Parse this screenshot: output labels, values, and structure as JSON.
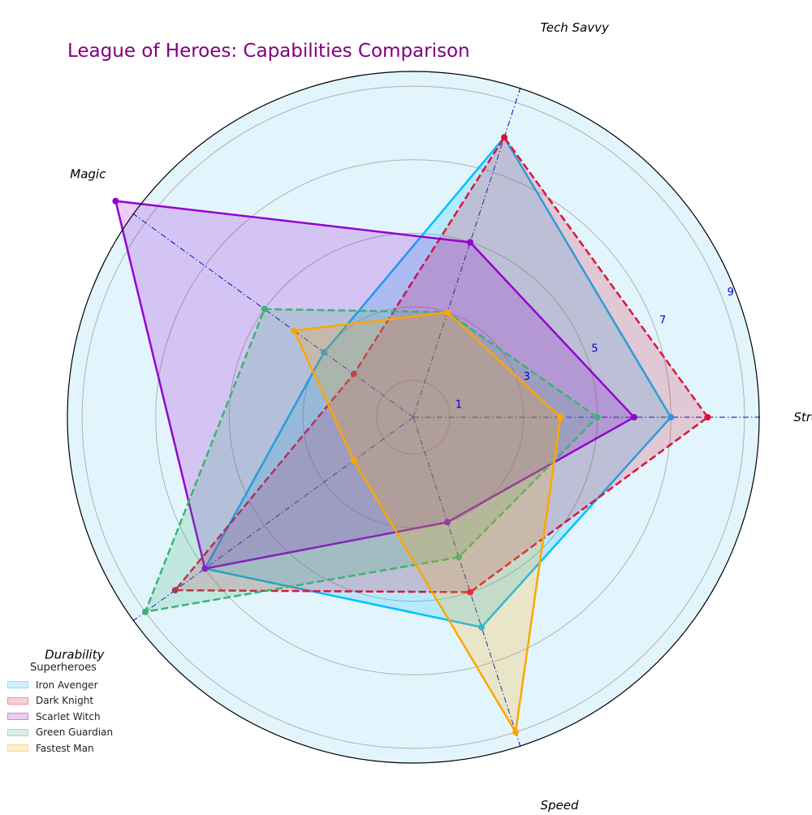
{
  "chart_data": {
    "type": "radar",
    "title": "League of Heroes: Capabilities Comparison",
    "axes": [
      "Strength",
      "Tech Savvy",
      "Magic",
      "Durability",
      "Speed"
    ],
    "rticks": [
      1,
      3,
      5,
      7,
      9
    ],
    "rlim": [
      0,
      9.4
    ],
    "legend_title": "Superheroes",
    "legend_position": "lower-left",
    "background_color": "#e3f5fc",
    "grid": true,
    "series": [
      {
        "name": "Iron Avenger",
        "values": [
          7,
          8,
          3,
          7,
          6
        ],
        "color": "#00bfff",
        "dashed": false
      },
      {
        "name": "Dark Knight",
        "values": [
          8,
          8,
          2,
          8,
          5
        ],
        "color": "#dc143c",
        "dashed": true
      },
      {
        "name": "Scarlet Witch",
        "values": [
          6,
          5,
          10,
          7,
          3
        ],
        "color": "#9400d3",
        "dashed": false
      },
      {
        "name": "Green Guardian",
        "values": [
          5,
          3,
          5,
          9,
          4
        ],
        "color": "#3cb371",
        "dashed": true
      },
      {
        "name": "Fastest Man",
        "values": [
          4,
          3,
          4,
          2,
          9
        ],
        "color": "#ffa500",
        "dashed": false
      }
    ]
  }
}
